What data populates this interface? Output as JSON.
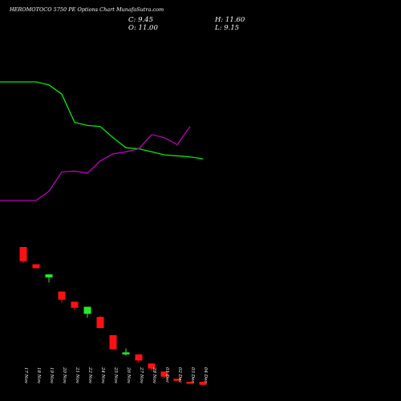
{
  "title": "HEROMOTOCO 5750 PE Options Chart MunafaSutra.com",
  "ohlc": {
    "close_label": "C: 9.45",
    "high_label": "H: 11.60",
    "open_label": "O: 11.00",
    "low_label": "L: 9.15"
  },
  "colors": {
    "up": "#22ee22",
    "down": "#ff1111",
    "line_green": "#00ee00",
    "line_magenta": "#bb00bb",
    "background": "#000000",
    "text": "#ffffff"
  },
  "chart_data": {
    "type": "candlestick",
    "categories": [
      "17 Nov",
      "18 Nov",
      "19 Nov",
      "20 Nov",
      "21 Nov",
      "22 Nov",
      "24 Nov",
      "25 Nov",
      "26 Nov",
      "27 Nov",
      "28 Nov",
      "01 Dec",
      "02 Dec",
      "03 Dec",
      "04 Dec"
    ],
    "candles": [
      {
        "date": "17 Nov",
        "open": 92,
        "high": 92,
        "low": 76,
        "close": 78
      },
      {
        "date": "18 Nov",
        "open": 75,
        "high": 75,
        "low": 71,
        "close": 71
      },
      {
        "date": "19 Nov",
        "open": 62,
        "high": 65,
        "low": 57,
        "close": 65
      },
      {
        "date": "20 Nov",
        "open": 48,
        "high": 48,
        "low": 37,
        "close": 40
      },
      {
        "date": "21 Nov",
        "open": 38,
        "high": 38,
        "low": 30,
        "close": 32
      },
      {
        "date": "22 Nov",
        "open": 26,
        "high": 33,
        "low": 22,
        "close": 33
      },
      {
        "date": "24 Nov",
        "open": 23,
        "high": 24,
        "low": 13,
        "close": 12
      },
      {
        "date": "25 Nov",
        "open": 5,
        "high": 5,
        "low": -9,
        "close": -9
      },
      {
        "date": "26 Nov",
        "open": -14,
        "high": -8,
        "low": -15,
        "close": -12
      },
      {
        "date": "27 Nov",
        "open": -14,
        "high": -14,
        "low": -22,
        "close": -20
      },
      {
        "date": "28 Nov",
        "open": -23,
        "high": -23,
        "low": -30,
        "close": -28
      },
      {
        "date": "01 Dec",
        "open": -31,
        "high": -31,
        "low": -37,
        "close": -36
      },
      {
        "date": "02 Dec",
        "open": -38,
        "high": -38,
        "low": -40,
        "close": -40
      },
      {
        "date": "03 Dec",
        "open": -41,
        "high": -41,
        "low": -43,
        "close": -43
      },
      {
        "date": "04 Dec",
        "open": -41,
        "high": -41,
        "low": -44,
        "close": -44
      }
    ],
    "lines": [
      {
        "color": "#00ee00",
        "points": [
          [
            -2,
            255
          ],
          [
            1,
            255
          ],
          [
            2,
            252
          ],
          [
            3,
            243
          ],
          [
            4,
            215
          ],
          [
            5,
            212
          ],
          [
            6,
            211
          ],
          [
            7,
            200
          ],
          [
            8,
            190
          ],
          [
            9,
            189
          ],
          [
            10,
            186
          ],
          [
            11,
            183
          ],
          [
            12,
            182
          ],
          [
            13,
            181
          ],
          [
            14,
            179
          ]
        ]
      },
      {
        "color": "#bb00bb",
        "points": [
          [
            -2,
            138
          ],
          [
            1,
            138
          ],
          [
            2,
            147
          ],
          [
            3,
            166
          ],
          [
            4,
            167
          ],
          [
            5,
            165
          ],
          [
            6,
            177
          ],
          [
            7,
            184
          ],
          [
            8,
            186
          ],
          [
            9,
            189
          ],
          [
            10,
            203
          ],
          [
            11,
            200
          ],
          [
            12,
            193
          ],
          [
            13,
            211
          ]
        ]
      }
    ],
    "ylim": [
      -60,
      320
    ]
  }
}
